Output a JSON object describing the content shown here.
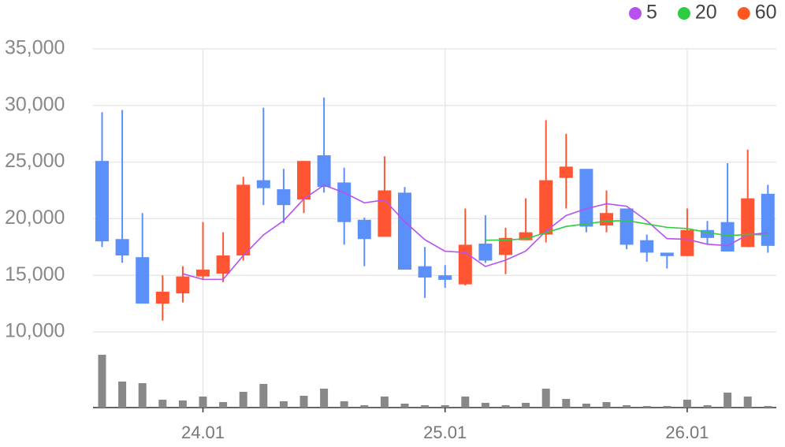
{
  "chart_data": {
    "type": "candlestick",
    "categories": [
      null,
      null,
      null,
      null,
      null,
      "24.01",
      null,
      null,
      null,
      null,
      null,
      null,
      null,
      null,
      null,
      null,
      null,
      "25.01",
      null,
      null,
      null,
      null,
      null,
      null,
      null,
      null,
      null,
      null,
      null,
      "26.01",
      null,
      null,
      null,
      null
    ],
    "open": [
      25100,
      18200,
      16600,
      12500,
      13400,
      14900,
      15150,
      16750,
      23400,
      22600,
      21700,
      25600,
      23200,
      19900,
      18400,
      22300,
      15800,
      15000,
      14200,
      17800,
      16800,
      18100,
      18600,
      23600,
      24400,
      19400,
      20900,
      18100,
      17000,
      16700,
      19000,
      19700,
      17500,
      22200
    ],
    "high": [
      29400,
      29600,
      20500,
      15000,
      15800,
      19700,
      18800,
      23700,
      29800,
      24400,
      25100,
      30700,
      24500,
      20100,
      25500,
      22800,
      17500,
      15900,
      20900,
      20300,
      19200,
      21800,
      28700,
      27500,
      24400,
      22500,
      20900,
      18600,
      17000,
      20900,
      19800,
      24900,
      26100,
      23000
    ],
    "low": [
      17500,
      16100,
      12500,
      11000,
      12600,
      14600,
      14400,
      16300,
      21200,
      19600,
      20500,
      22300,
      17700,
      15800,
      18400,
      15500,
      13000,
      13900,
      14100,
      16100,
      15100,
      18100,
      17900,
      20900,
      18800,
      18800,
      17300,
      16200,
      15600,
      16700,
      17800,
      17100,
      17500,
      17000
    ],
    "close": [
      18000,
      16750,
      12500,
      13550,
      14900,
      15500,
      16750,
      23000,
      22700,
      21200,
      25100,
      22800,
      19700,
      18200,
      22500,
      15500,
      14800,
      14600,
      17700,
      16300,
      18300,
      18800,
      23400,
      24600,
      19300,
      20500,
      17700,
      17000,
      16700,
      19000,
      18300,
      17100,
      21800,
      17600
    ],
    "volume": [
      67,
      33,
      31,
      10,
      9,
      14,
      7,
      20,
      30,
      8,
      15,
      24,
      8,
      3,
      14,
      5,
      3,
      3,
      14,
      6,
      3,
      6,
      24,
      11,
      5,
      7,
      3,
      2,
      2,
      10,
      3,
      19,
      14,
      2
    ],
    "up_color": "#ff5533",
    "down_color": "#5b8ff9",
    "volume_color": "#888888",
    "ma": [
      {
        "name": "5",
        "color": "#b650f0",
        "values": [
          null,
          null,
          null,
          null,
          15140,
          14640,
          14640,
          16740,
          18570,
          19830,
          21750,
          22960,
          22300,
          21400,
          21660,
          19740,
          18140,
          17120,
          17020,
          15780,
          16340,
          17140,
          18900,
          20280,
          20880,
          21320,
          21100,
          19820,
          18240,
          18180,
          17740,
          17620,
          18580,
          18760
        ]
      },
      {
        "name": "20",
        "color": "#2ecc40",
        "values": [
          null,
          null,
          null,
          null,
          null,
          null,
          null,
          null,
          null,
          null,
          null,
          null,
          null,
          null,
          null,
          null,
          null,
          null,
          null,
          18102,
          18118,
          18220,
          18765,
          19318,
          19538,
          19788,
          19835,
          19535,
          19235,
          19125,
          18785,
          18500,
          18605,
          18575
        ]
      },
      {
        "name": "60",
        "color": "#ff5722",
        "values": [
          null,
          null,
          null,
          null,
          null,
          null,
          null,
          null,
          null,
          null,
          null,
          null,
          null,
          null,
          null,
          null,
          null,
          null,
          null,
          null,
          null,
          null,
          null,
          null,
          null,
          null,
          null,
          null,
          null,
          null,
          null,
          null,
          null,
          null
        ]
      }
    ],
    "ylim": [
      10000,
      35000
    ],
    "yticks": [
      {
        "value": 10000,
        "label": "10,000"
      },
      {
        "value": 15000,
        "label": "15,000"
      },
      {
        "value": 20000,
        "label": "20,000"
      },
      {
        "value": 25000,
        "label": "25,000"
      },
      {
        "value": 30000,
        "label": "30,000"
      },
      {
        "value": 35000,
        "label": "35,000"
      }
    ],
    "grid": true,
    "legend": "top-right"
  }
}
